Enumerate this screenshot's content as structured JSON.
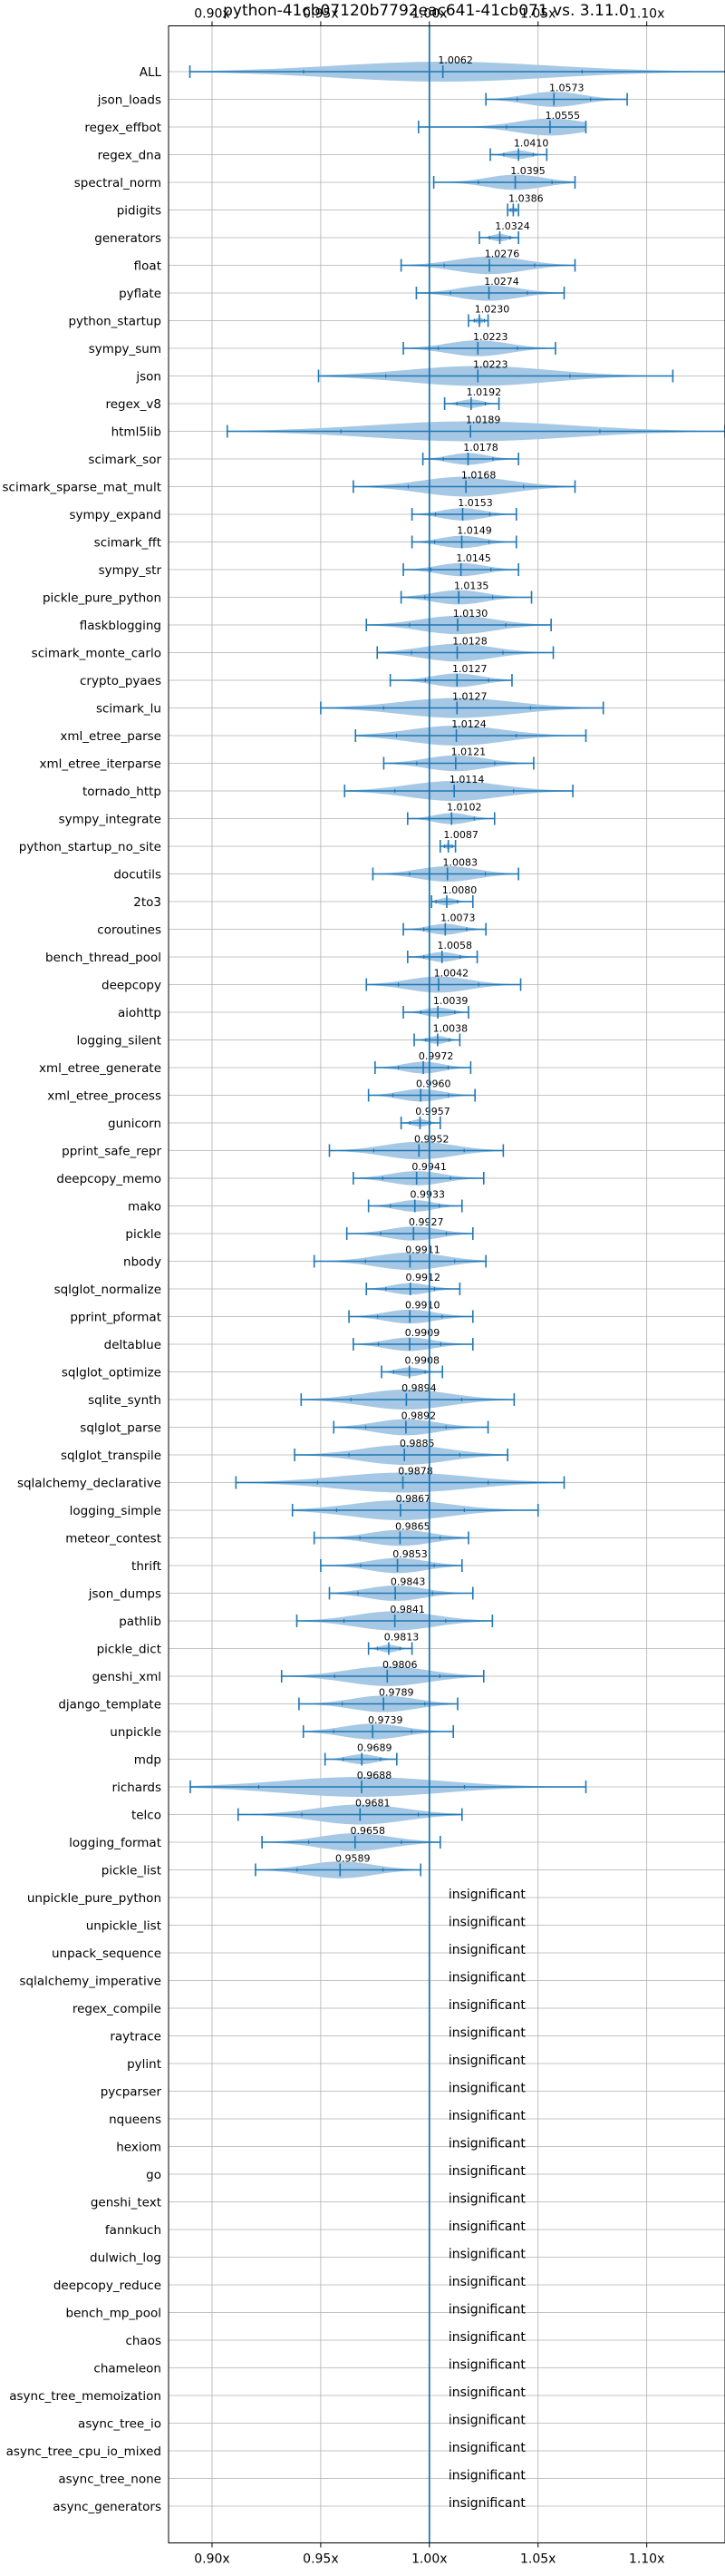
{
  "chart_data": {
    "type": "violin",
    "title": "python-41cb07120b7792eac641-41cb071 vs. 3.11.0",
    "xlim": [
      0.88,
      1.136
    ],
    "grid": true,
    "xticks": [
      {
        "value": 0.9,
        "label": "0.90x"
      },
      {
        "value": 0.95,
        "label": "0.95x"
      },
      {
        "value": 1.0,
        "label": "1.00x"
      },
      {
        "value": 1.05,
        "label": "1.05x"
      },
      {
        "value": 1.1,
        "label": "1.10x"
      }
    ],
    "reference_line": 1.0,
    "insignificant_label": "insignificant",
    "colors": {
      "violin": "#a6c8e4",
      "line": "#1f77b4",
      "grid": "#b0b0b0",
      "text": "#000000"
    },
    "benchmarks": [
      {
        "name": "ALL",
        "mean": 1.0062,
        "min": 0.8898,
        "max": 1.1363
      },
      {
        "name": "json_loads",
        "mean": 1.0573,
        "min": 1.026,
        "max": 1.091
      },
      {
        "name": "regex_effbot",
        "mean": 1.0555,
        "min": 0.995,
        "max": 1.072
      },
      {
        "name": "regex_dna",
        "mean": 1.041,
        "min": 1.028,
        "max": 1.054
      },
      {
        "name": "spectral_norm",
        "mean": 1.0395,
        "min": 1.002,
        "max": 1.067
      },
      {
        "name": "pidigits",
        "mean": 1.0386,
        "min": 1.036,
        "max": 1.041
      },
      {
        "name": "generators",
        "mean": 1.0324,
        "min": 1.023,
        "max": 1.041
      },
      {
        "name": "float",
        "mean": 1.0276,
        "min": 0.987,
        "max": 1.067
      },
      {
        "name": "pyflate",
        "mean": 1.0274,
        "min": 0.994,
        "max": 1.062
      },
      {
        "name": "python_startup",
        "mean": 1.023,
        "min": 1.018,
        "max": 1.027
      },
      {
        "name": "sympy_sum",
        "mean": 1.0223,
        "min": 0.988,
        "max": 1.058
      },
      {
        "name": "json",
        "mean": 1.0223,
        "min": 0.949,
        "max": 1.112
      },
      {
        "name": "regex_v8",
        "mean": 1.0192,
        "min": 1.007,
        "max": 1.032
      },
      {
        "name": "html5lib",
        "mean": 1.0189,
        "min": 0.907,
        "max": 1.136
      },
      {
        "name": "scimark_sor",
        "mean": 1.0178,
        "min": 0.997,
        "max": 1.041
      },
      {
        "name": "scimark_sparse_mat_mult",
        "mean": 1.0168,
        "min": 0.965,
        "max": 1.067
      },
      {
        "name": "sympy_expand",
        "mean": 1.0153,
        "min": 0.992,
        "max": 1.04
      },
      {
        "name": "scimark_fft",
        "mean": 1.0149,
        "min": 0.992,
        "max": 1.04
      },
      {
        "name": "sympy_str",
        "mean": 1.0145,
        "min": 0.988,
        "max": 1.041
      },
      {
        "name": "pickle_pure_python",
        "mean": 1.0135,
        "min": 0.987,
        "max": 1.047
      },
      {
        "name": "flaskblogging",
        "mean": 1.013,
        "min": 0.971,
        "max": 1.056
      },
      {
        "name": "scimark_monte_carlo",
        "mean": 1.0128,
        "min": 0.976,
        "max": 1.057
      },
      {
        "name": "crypto_pyaes",
        "mean": 1.0127,
        "min": 0.982,
        "max": 1.038
      },
      {
        "name": "scimark_lu",
        "mean": 1.0127,
        "min": 0.95,
        "max": 1.08
      },
      {
        "name": "xml_etree_parse",
        "mean": 1.0124,
        "min": 0.966,
        "max": 1.072
      },
      {
        "name": "xml_etree_iterparse",
        "mean": 1.0121,
        "min": 0.979,
        "max": 1.048
      },
      {
        "name": "tornado_http",
        "mean": 1.0114,
        "min": 0.961,
        "max": 1.066
      },
      {
        "name": "sympy_integrate",
        "mean": 1.0102,
        "min": 0.99,
        "max": 1.03
      },
      {
        "name": "python_startup_no_site",
        "mean": 1.0087,
        "min": 1.005,
        "max": 1.012
      },
      {
        "name": "docutils",
        "mean": 1.0083,
        "min": 0.974,
        "max": 1.041
      },
      {
        "name": "2to3",
        "mean": 1.008,
        "min": 1.001,
        "max": 1.02
      },
      {
        "name": "coroutines",
        "mean": 1.0073,
        "min": 0.988,
        "max": 1.026
      },
      {
        "name": "bench_thread_pool",
        "mean": 1.0058,
        "min": 0.99,
        "max": 1.022
      },
      {
        "name": "deepcopy",
        "mean": 1.0042,
        "min": 0.971,
        "max": 1.042
      },
      {
        "name": "aiohttp",
        "mean": 1.0039,
        "min": 0.988,
        "max": 1.018
      },
      {
        "name": "logging_silent",
        "mean": 1.0038,
        "min": 0.993,
        "max": 1.014
      },
      {
        "name": "xml_etree_generate",
        "mean": 0.9972,
        "min": 0.975,
        "max": 1.019
      },
      {
        "name": "xml_etree_process",
        "mean": 0.996,
        "min": 0.972,
        "max": 1.021
      },
      {
        "name": "gunicorn",
        "mean": 0.9957,
        "min": 0.987,
        "max": 1.005
      },
      {
        "name": "pprint_safe_repr",
        "mean": 0.9952,
        "min": 0.954,
        "max": 1.034
      },
      {
        "name": "deepcopy_memo",
        "mean": 0.9941,
        "min": 0.965,
        "max": 1.025
      },
      {
        "name": "mako",
        "mean": 0.9933,
        "min": 0.972,
        "max": 1.015
      },
      {
        "name": "pickle",
        "mean": 0.9927,
        "min": 0.962,
        "max": 1.02
      },
      {
        "name": "nbody",
        "mean": 0.9911,
        "min": 0.947,
        "max": 1.026
      },
      {
        "name": "sqlglot_normalize",
        "mean": 0.9912,
        "min": 0.971,
        "max": 1.014
      },
      {
        "name": "pprint_pformat",
        "mean": 0.991,
        "min": 0.963,
        "max": 1.02
      },
      {
        "name": "deltablue",
        "mean": 0.9909,
        "min": 0.965,
        "max": 1.02
      },
      {
        "name": "sqlglot_optimize",
        "mean": 0.9908,
        "min": 0.978,
        "max": 1.006
      },
      {
        "name": "sqlite_synth",
        "mean": 0.9894,
        "min": 0.941,
        "max": 1.039
      },
      {
        "name": "sqlglot_parse",
        "mean": 0.9892,
        "min": 0.956,
        "max": 1.027
      },
      {
        "name": "sqlglot_transpile",
        "mean": 0.9885,
        "min": 0.938,
        "max": 1.036
      },
      {
        "name": "sqlalchemy_declarative",
        "mean": 0.9878,
        "min": 0.911,
        "max": 1.062
      },
      {
        "name": "logging_simple",
        "mean": 0.9867,
        "min": 0.937,
        "max": 1.05
      },
      {
        "name": "meteor_contest",
        "mean": 0.9865,
        "min": 0.947,
        "max": 1.018
      },
      {
        "name": "thrift",
        "mean": 0.9853,
        "min": 0.95,
        "max": 1.015
      },
      {
        "name": "json_dumps",
        "mean": 0.9843,
        "min": 0.954,
        "max": 1.02
      },
      {
        "name": "pathlib",
        "mean": 0.9841,
        "min": 0.939,
        "max": 1.029
      },
      {
        "name": "pickle_dict",
        "mean": 0.9813,
        "min": 0.972,
        "max": 0.992
      },
      {
        "name": "genshi_xml",
        "mean": 0.9806,
        "min": 0.932,
        "max": 1.025
      },
      {
        "name": "django_template",
        "mean": 0.9789,
        "min": 0.94,
        "max": 1.013
      },
      {
        "name": "unpickle",
        "mean": 0.9739,
        "min": 0.942,
        "max": 1.011
      },
      {
        "name": "mdp",
        "mean": 0.9689,
        "min": 0.952,
        "max": 0.985
      },
      {
        "name": "richards",
        "mean": 0.9688,
        "min": 0.89,
        "max": 1.072
      },
      {
        "name": "telco",
        "mean": 0.9681,
        "min": 0.912,
        "max": 1.015
      },
      {
        "name": "logging_format",
        "mean": 0.9658,
        "min": 0.923,
        "max": 1.005
      },
      {
        "name": "pickle_list",
        "mean": 0.9589,
        "min": 0.92,
        "max": 0.996
      }
    ],
    "insignificant": [
      "unpickle_pure_python",
      "unpickle_list",
      "unpack_sequence",
      "sqlalchemy_imperative",
      "regex_compile",
      "raytrace",
      "pylint",
      "pycparser",
      "nqueens",
      "hexiom",
      "go",
      "genshi_text",
      "fannkuch",
      "dulwich_log",
      "deepcopy_reduce",
      "bench_mp_pool",
      "chaos",
      "chameleon",
      "async_tree_memoization",
      "async_tree_io",
      "async_tree_cpu_io_mixed",
      "async_tree_none",
      "async_generators"
    ]
  }
}
